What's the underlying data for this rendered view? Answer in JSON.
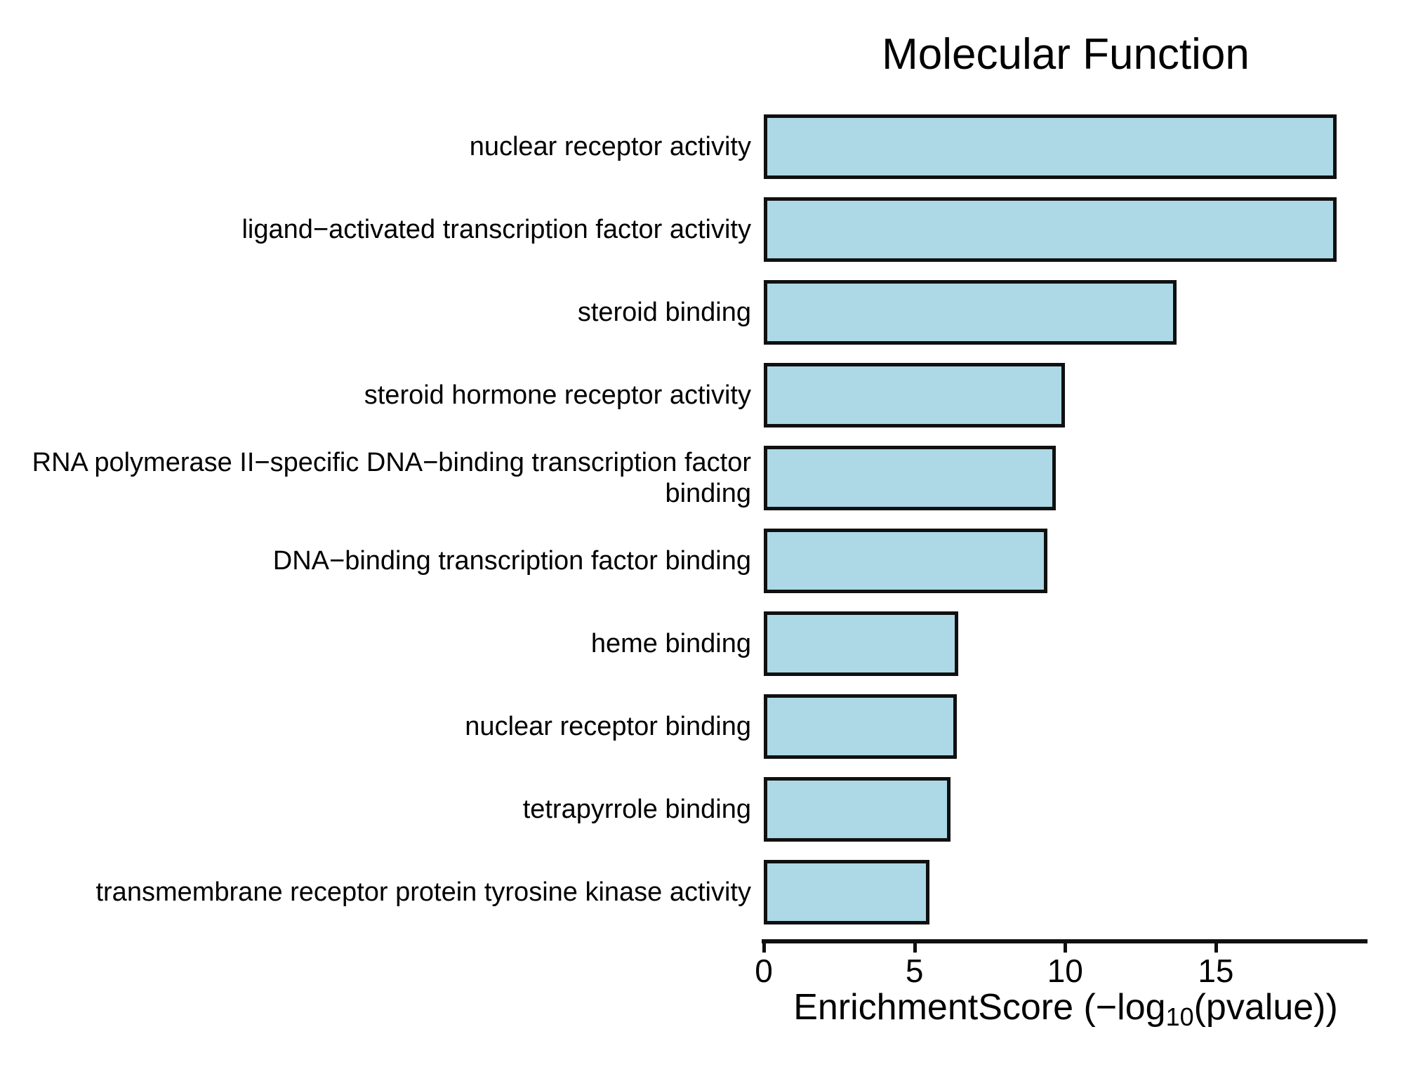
{
  "title": "Molecular Function",
  "chart_data": {
    "type": "bar",
    "orientation": "horizontal",
    "title": "Molecular Function",
    "categories": [
      "nuclear receptor activity",
      "ligand−activated transcription factor activity",
      "steroid binding",
      "steroid hormone receptor activity",
      "RNA polymerase II−specific DNA−binding transcription factor\nbinding",
      "DNA−binding transcription factor binding",
      "heme binding",
      "nuclear receptor binding",
      "tetrapyrrole binding",
      "transmembrane receptor protein tyrosine kinase activity"
    ],
    "values": [
      19.0,
      19.0,
      13.7,
      10.0,
      9.7,
      9.4,
      6.45,
      6.4,
      6.2,
      5.5
    ],
    "xlabel": "EnrichmentScore (−log10(pvalue))",
    "xlabel_parts": {
      "prefix": "EnrichmentScore (−log",
      "subscript": "10",
      "suffix": "(pvalue))"
    },
    "x_ticks": [
      "0",
      "5",
      "10",
      "15"
    ],
    "x_tick_values": [
      0,
      5,
      10,
      15
    ],
    "xlim": [
      0,
      20.1
    ],
    "bar_fill": "#ADD8E6",
    "bar_border": "#101010",
    "background": "#FFFFFF",
    "grid": false,
    "legend": "none"
  }
}
